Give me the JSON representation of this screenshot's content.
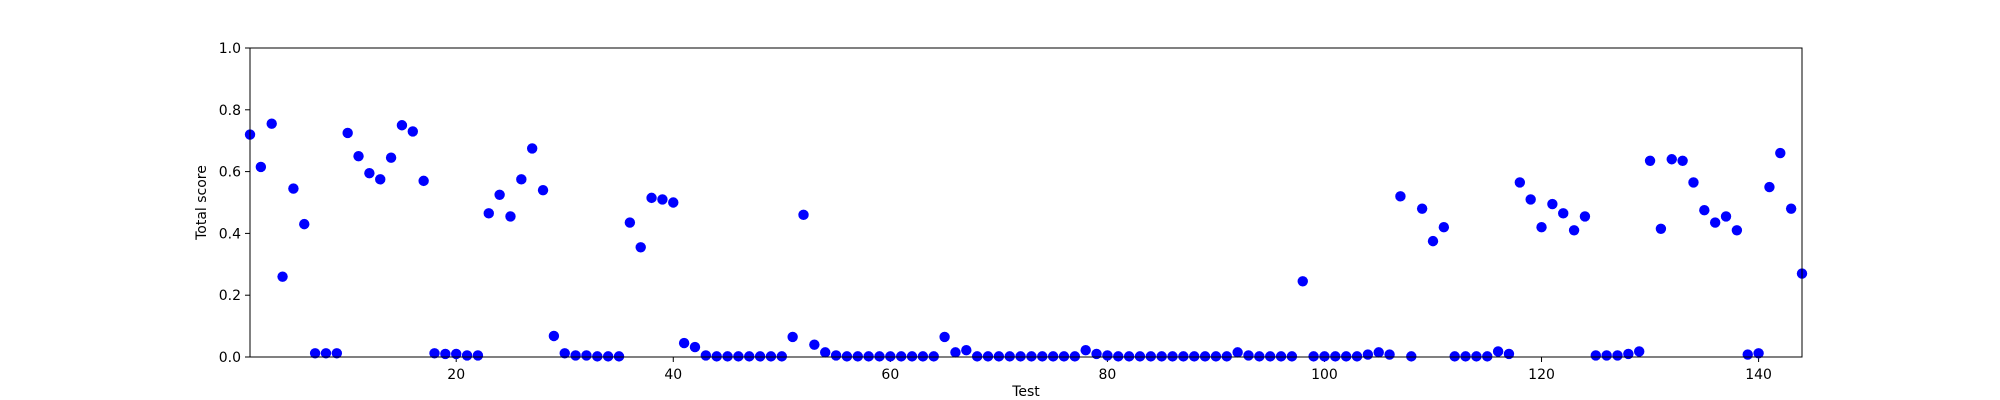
{
  "chart_data": {
    "type": "scatter",
    "title": "",
    "xlabel": "Test",
    "ylabel": "Total score",
    "xlim": [
      1,
      144
    ],
    "ylim": [
      0.0,
      1.0
    ],
    "xticks": [
      20,
      40,
      60,
      80,
      100,
      120,
      140
    ],
    "yticks": [
      0.0,
      0.2,
      0.4,
      0.6,
      0.8,
      1.0
    ],
    "xtick_labels": [
      "20",
      "40",
      "60",
      "80",
      "100",
      "120",
      "140"
    ],
    "ytick_labels": [
      "0.0",
      "0.2",
      "0.4",
      "0.6",
      "0.8",
      "1.0"
    ],
    "grid": false,
    "marker_color": "#0000ff",
    "series": [
      {
        "x": [
          1,
          2,
          3,
          4,
          5,
          6,
          7,
          8,
          9,
          10,
          11,
          12,
          13,
          14,
          15,
          16,
          17,
          18,
          19,
          20,
          21,
          22,
          23,
          24,
          25,
          26,
          27,
          28,
          29,
          30,
          31,
          32,
          33,
          34,
          35,
          36,
          37,
          38,
          39,
          40,
          41,
          42,
          43,
          44,
          45,
          46,
          47,
          48,
          49,
          50,
          51,
          52,
          53,
          54,
          55,
          56,
          57,
          58,
          59,
          60,
          61,
          62,
          63,
          64,
          65,
          66,
          67,
          68,
          69,
          70,
          71,
          72,
          73,
          74,
          75,
          76,
          77,
          78,
          79,
          80,
          81,
          82,
          83,
          84,
          85,
          86,
          87,
          88,
          89,
          90,
          91,
          92,
          93,
          94,
          95,
          96,
          97,
          98,
          99,
          100,
          101,
          102,
          103,
          104,
          105,
          106,
          107,
          108,
          109,
          110,
          111,
          112,
          113,
          114,
          115,
          116,
          117,
          118,
          119,
          120,
          121,
          122,
          123,
          124,
          125,
          126,
          127,
          128,
          129,
          130,
          131,
          132,
          133,
          134,
          135,
          136,
          137,
          138,
          139,
          140,
          141,
          142,
          143,
          144
        ],
        "y": [
          0.72,
          0.615,
          0.755,
          0.26,
          0.545,
          0.43,
          0.012,
          0.012,
          0.012,
          0.725,
          0.65,
          0.595,
          0.575,
          0.645,
          0.75,
          0.73,
          0.57,
          0.012,
          0.01,
          0.01,
          0.005,
          0.005,
          0.465,
          0.525,
          0.455,
          0.575,
          0.675,
          0.54,
          0.068,
          0.012,
          0.005,
          0.005,
          0.002,
          0.002,
          0.002,
          0.435,
          0.355,
          0.515,
          0.51,
          0.5,
          0.045,
          0.032,
          0.005,
          0.002,
          0.002,
          0.002,
          0.002,
          0.002,
          0.002,
          0.002,
          0.065,
          0.46,
          0.04,
          0.015,
          0.005,
          0.002,
          0.002,
          0.002,
          0.002,
          0.002,
          0.002,
          0.002,
          0.002,
          0.002,
          0.065,
          0.015,
          0.022,
          0.002,
          0.002,
          0.002,
          0.002,
          0.002,
          0.002,
          0.002,
          0.002,
          0.002,
          0.002,
          0.022,
          0.01,
          0.005,
          0.002,
          0.002,
          0.002,
          0.002,
          0.002,
          0.002,
          0.002,
          0.002,
          0.002,
          0.002,
          0.002,
          0.015,
          0.005,
          0.002,
          0.002,
          0.002,
          0.002,
          0.245,
          0.002,
          0.002,
          0.002,
          0.002,
          0.002,
          0.008,
          0.015,
          0.008,
          0.52,
          0.002,
          0.48,
          0.375,
          0.42,
          0.002,
          0.002,
          0.002,
          0.002,
          0.018,
          0.01,
          0.565,
          0.51,
          0.42,
          0.495,
          0.465,
          0.41,
          0.455,
          0.005,
          0.005,
          0.005,
          0.01,
          0.018,
          0.635,
          0.415,
          0.64,
          0.635,
          0.565,
          0.475,
          0.435,
          0.455,
          0.41,
          0.008,
          0.012,
          0.55,
          0.66,
          0.48,
          0.27
        ]
      }
    ]
  }
}
